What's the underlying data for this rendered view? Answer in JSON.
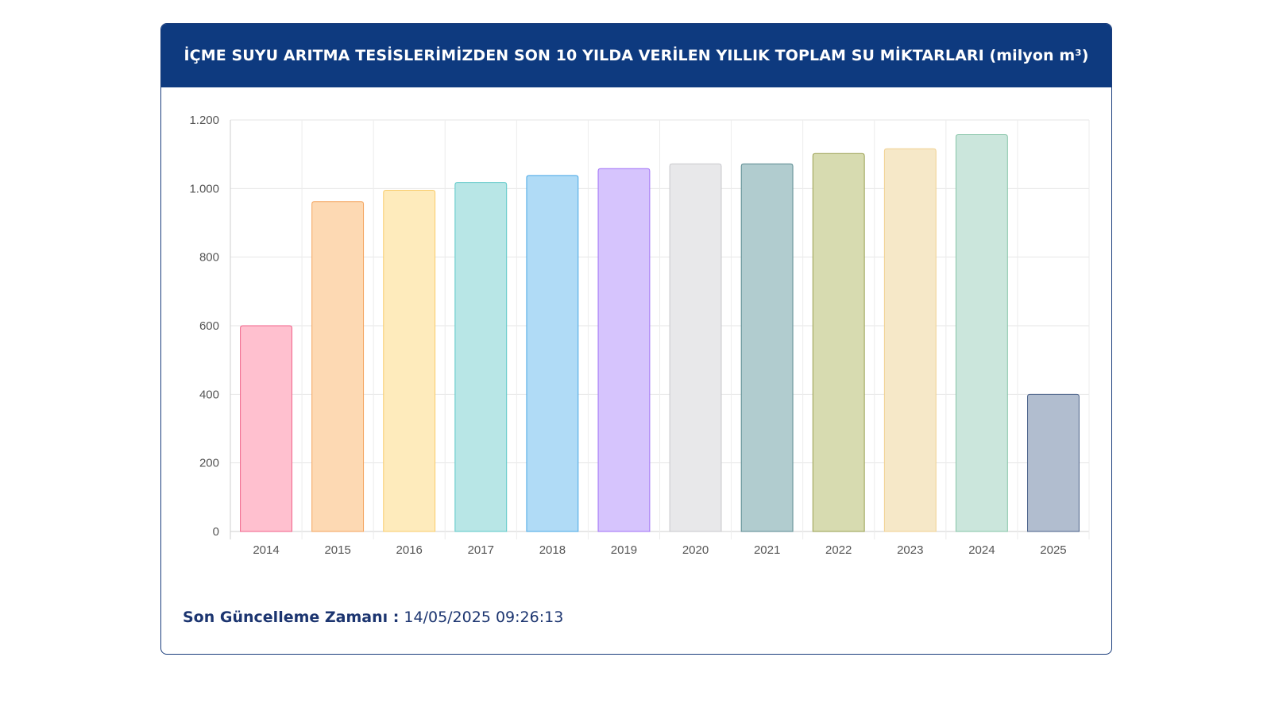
{
  "header": {
    "title": "İÇME SUYU ARITMA TESİSLERİMİZDEN SON 10 YILDA VERİLEN YILLIK TOPLAM SU MİKTARLARI (milyon m³)"
  },
  "footer": {
    "label": "Son Güncelleme Zamanı :",
    "value": " 14/05/2025 09:26:13"
  },
  "chart_data": {
    "type": "bar",
    "title": "İÇME SUYU ARITMA TESİSLERİMİZDEN SON 10 YILDA VERİLEN YILLIK TOPLAM SU MİKTARLARI (milyon m³)",
    "xlabel": "",
    "ylabel": "",
    "categories": [
      "2014",
      "2015",
      "2016",
      "2017",
      "2018",
      "2019",
      "2020",
      "2021",
      "2022",
      "2023",
      "2024",
      "2025"
    ],
    "values": [
      600,
      962,
      995,
      1018,
      1038,
      1058,
      1072,
      1072,
      1102,
      1116,
      1157,
      400
    ],
    "ylim": [
      0,
      1200
    ],
    "yticks": [
      0,
      200,
      400,
      600,
      800,
      1000,
      1200
    ],
    "ytick_labels": [
      "0",
      "200",
      "400",
      "600",
      "800",
      "1.000",
      "1.200"
    ],
    "grid": true,
    "legend": "none",
    "fill_colors": [
      "#ffc0cf",
      "#fdd9b3",
      "#feebbc",
      "#b8e6e6",
      "#b0dbf6",
      "#d6c4fd",
      "#e8e8ea",
      "#b1cccf",
      "#d7dbb0",
      "#f6e8c8",
      "#cbe6dc",
      "#b1bdcf"
    ],
    "border_colors": [
      "#f0628a",
      "#f4a45d",
      "#f8cc6b",
      "#5cc8c8",
      "#4aa8e6",
      "#a070f6",
      "#c8c8cc",
      "#5a8a90",
      "#9aa050",
      "#f0d090",
      "#86c4a8",
      "#4a6088"
    ]
  }
}
